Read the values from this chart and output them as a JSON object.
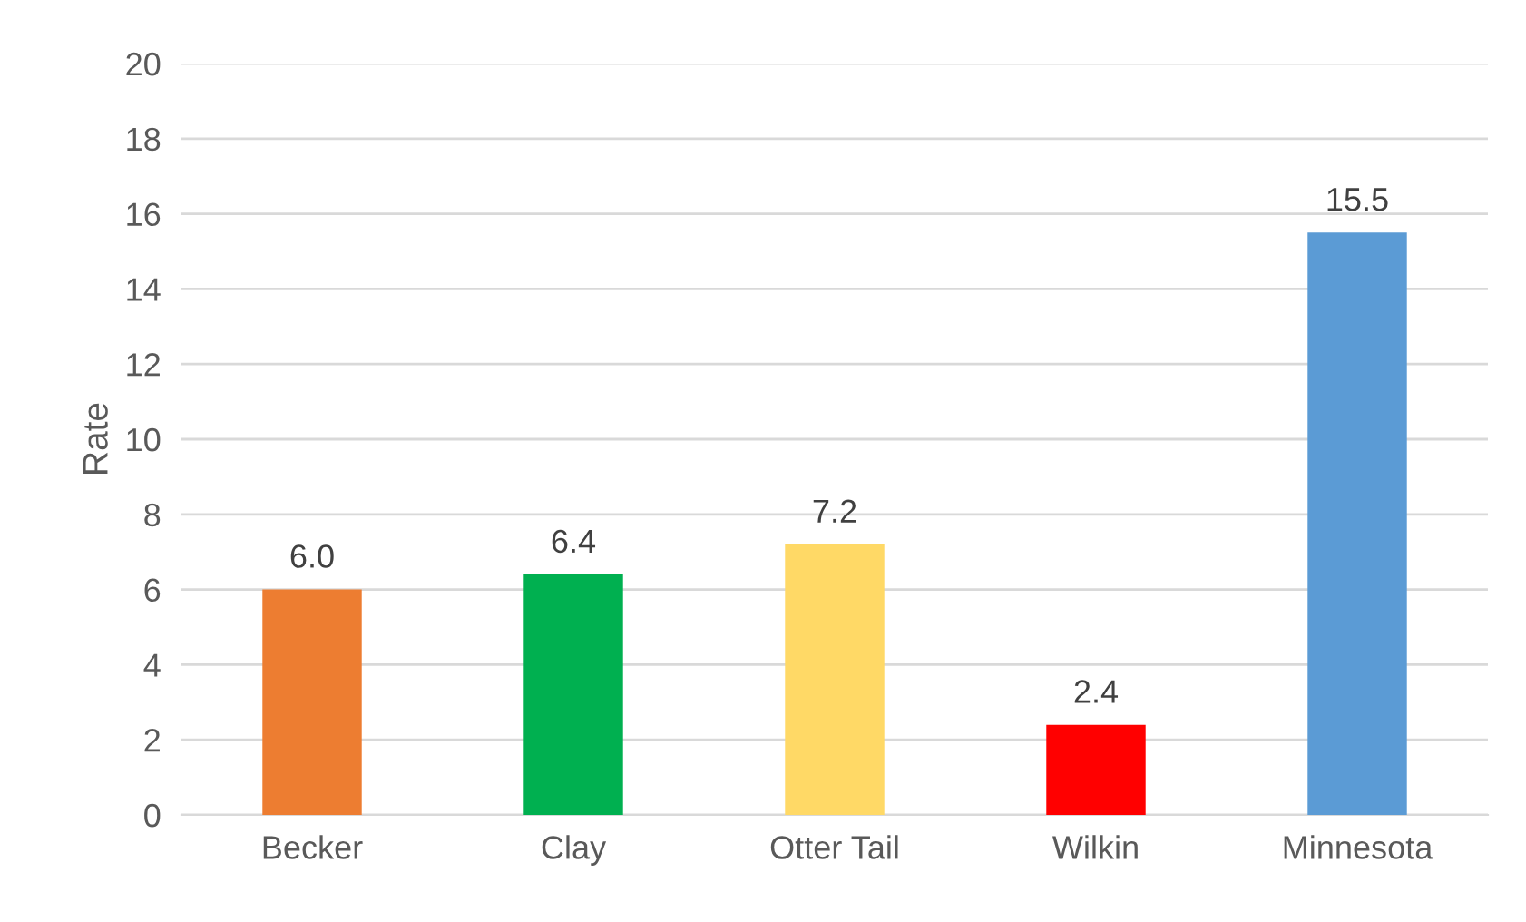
{
  "chart_data": {
    "type": "bar",
    "ylabel": "Rate",
    "categories": [
      "Becker",
      "Clay",
      "Otter Tail",
      "Wilkin",
      "Minnesota"
    ],
    "values": [
      6.0,
      6.4,
      7.2,
      2.4,
      15.5
    ],
    "colors": [
      "#ed7d31",
      "#00b050",
      "#ffd966",
      "#ff0000",
      "#5b9bd5"
    ],
    "value_labels": [
      "6.0",
      "6.4",
      "7.2",
      "2.4",
      "15.5"
    ],
    "ylim": [
      0,
      20
    ],
    "yticks": [
      0,
      2,
      4,
      6,
      8,
      10,
      12,
      14,
      16,
      18,
      20
    ],
    "grid": "y"
  }
}
